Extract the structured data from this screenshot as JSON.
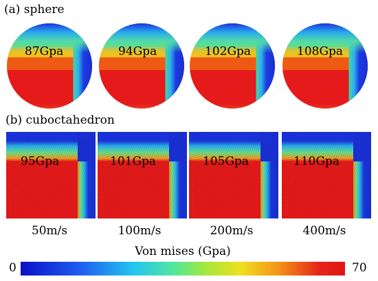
{
  "panels": {
    "a": {
      "label": "(a) sphere"
    },
    "b": {
      "label": "(b) cuboctahedron"
    }
  },
  "sphere_pressures": [
    "87Gpa",
    "94Gpa",
    "102Gpa",
    "108Gpa"
  ],
  "cube_pressures": [
    "95Gpa",
    "101Gpa",
    "105Gpa",
    "110Gpa"
  ],
  "velocities": [
    "50m/s",
    "100m/s",
    "200m/s",
    "400m/s"
  ],
  "colorbar": {
    "title": "Von mises  (Gpa)",
    "min": "0",
    "max": "70",
    "colors": [
      "#0a10c8",
      "#23c6ee",
      "#a4e83a",
      "#f0e020",
      "#e01616"
    ]
  }
}
